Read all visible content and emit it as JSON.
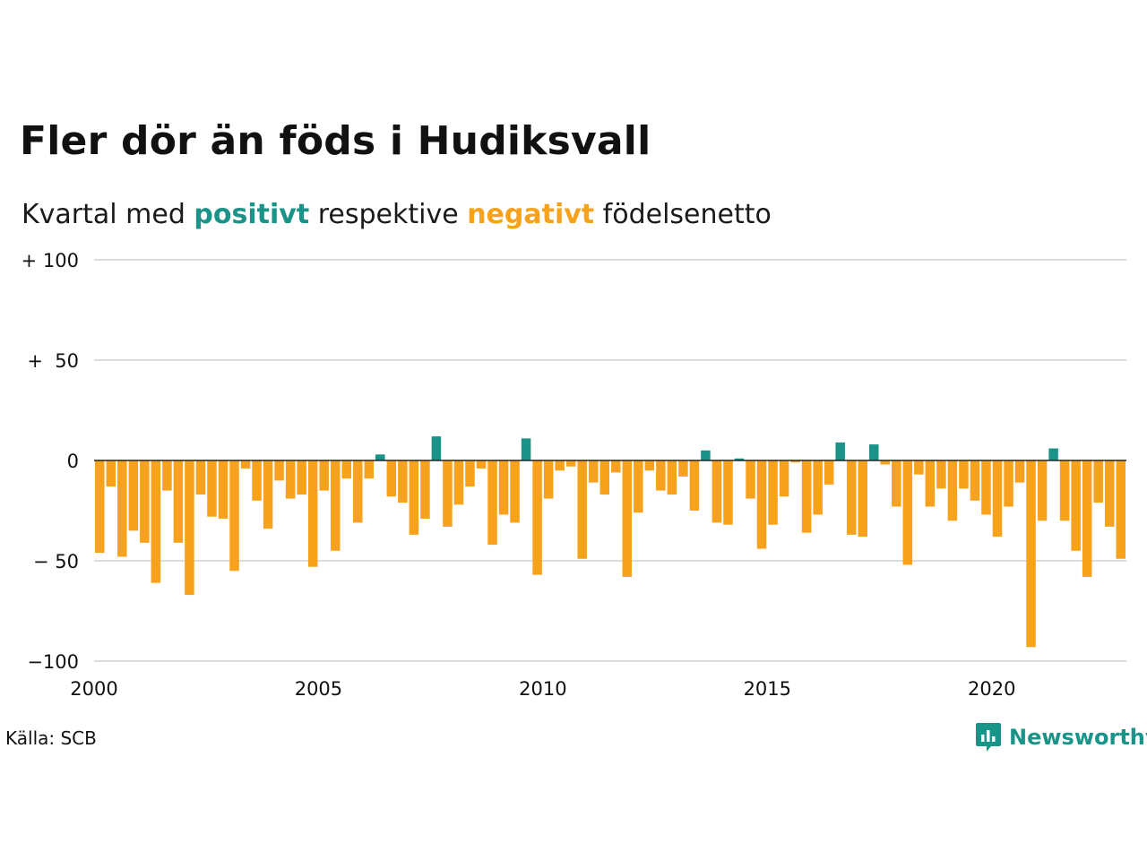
{
  "title": "Fler dör än föds i Hudiksvall",
  "subtitle": {
    "prefix": "Kvartal med ",
    "positive_word": "positivt",
    "middle": " respektive ",
    "negative_word": "negativt",
    "suffix": " födelsenetto"
  },
  "source": "Källa: SCB",
  "logo": {
    "name": "Newsworthy",
    "icon": "newsworthy-logo-icon"
  },
  "colors": {
    "positive": "#1a9488",
    "negative": "#f7a21d",
    "grid": "#dcdcdc",
    "zero": "#222222"
  },
  "chart_data": {
    "type": "bar",
    "title": "Fler dör än föds i Hudiksvall",
    "xlabel": "",
    "ylabel": "",
    "ylim": [
      -100,
      100
    ],
    "xlim": [
      2000,
      2023
    ],
    "grid": true,
    "legend": "none",
    "y_ticks": [
      {
        "value": 100,
        "label": "+ 100"
      },
      {
        "value": 50,
        "label": "+  50"
      },
      {
        "value": 0,
        "label": "0"
      },
      {
        "value": -50,
        "label": "− 50"
      },
      {
        "value": -100,
        "label": "−100"
      }
    ],
    "x_ticks": [
      {
        "value": 2000,
        "label": "2000"
      },
      {
        "value": 2005,
        "label": "2005"
      },
      {
        "value": 2010,
        "label": "2010"
      },
      {
        "value": 2015,
        "label": "2015"
      },
      {
        "value": 2020,
        "label": "2020"
      }
    ],
    "start_year": 2000,
    "values": [
      -46,
      -13,
      -48,
      -35,
      -41,
      -61,
      -15,
      -41,
      -67,
      -17,
      -28,
      -29,
      -55,
      -4,
      -20,
      -34,
      -10,
      -19,
      -17,
      -53,
      -15,
      -45,
      -9,
      -31,
      -9,
      3,
      -18,
      -21,
      -37,
      -29,
      12,
      -33,
      -22,
      -13,
      -4,
      -42,
      -27,
      -31,
      11,
      -57,
      -19,
      -5,
      -3,
      -49,
      -11,
      -17,
      -6,
      -58,
      -26,
      -5,
      -15,
      -17,
      -8,
      -25,
      5,
      -31,
      -32,
      1,
      -19,
      -44,
      -32,
      -18,
      -1,
      -36,
      -27,
      -12,
      9,
      -37,
      -38,
      8,
      -2,
      -23,
      -52,
      -7,
      -23,
      -14,
      -30,
      -14,
      -20,
      -27,
      -38,
      -23,
      -11,
      -93,
      -30,
      6,
      -30,
      -45,
      -58,
      -21,
      -33,
      -49
    ]
  }
}
